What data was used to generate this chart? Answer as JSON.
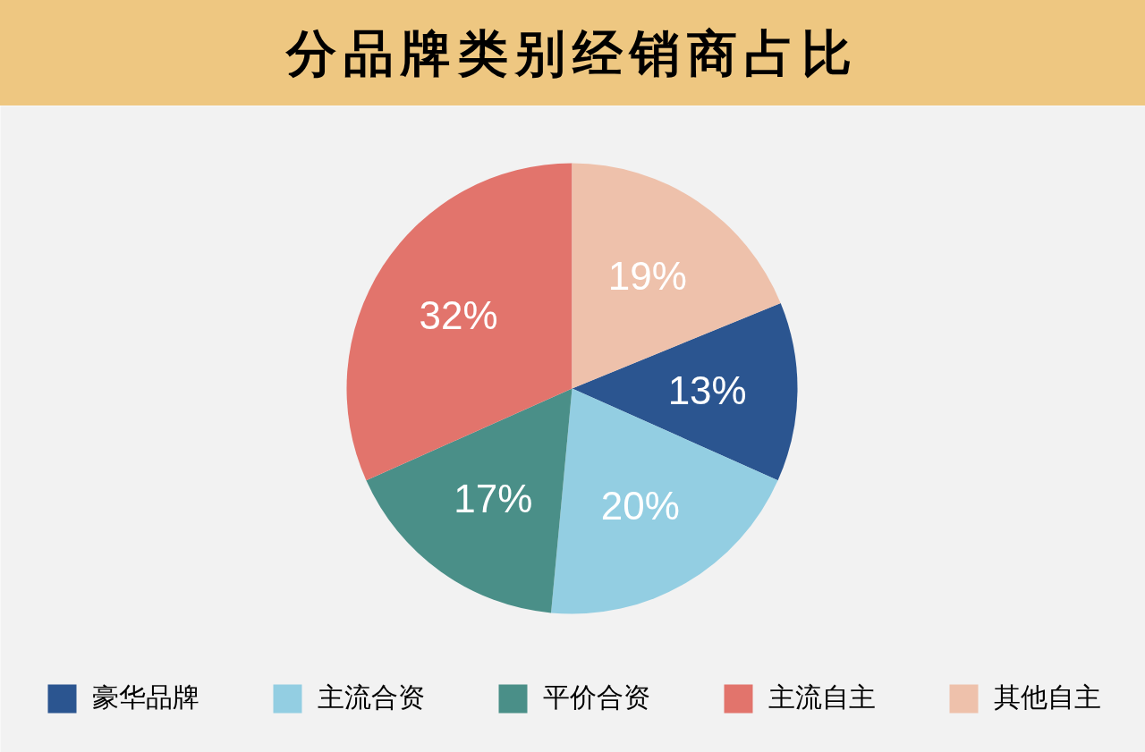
{
  "chart_data": {
    "type": "pie",
    "title": "分品牌类别经销商占比",
    "categories": [
      "豪华品牌",
      "主流合资",
      "平价合资",
      "主流自主",
      "其他自主"
    ],
    "values": [
      13,
      20,
      17,
      32,
      19
    ],
    "value_labels": [
      "13%",
      "20%",
      "17%",
      "32%",
      "19%"
    ],
    "colors": [
      "#2b5590",
      "#93cee2",
      "#4a8f88",
      "#e2746c",
      "#eec1ab"
    ],
    "legend": "bottom"
  }
}
